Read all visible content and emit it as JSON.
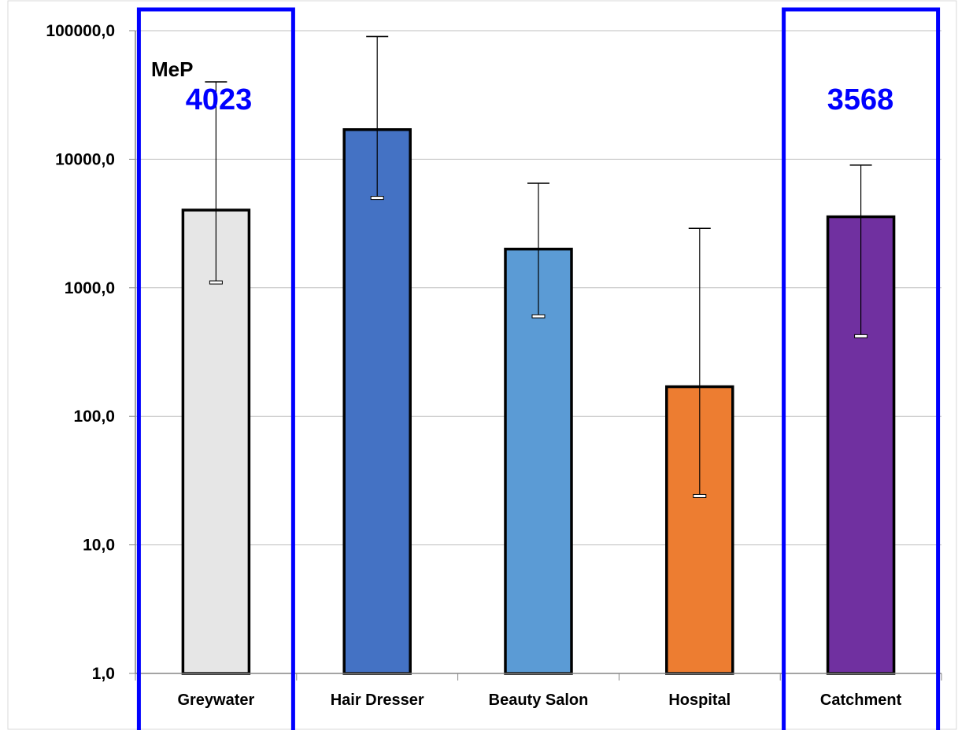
{
  "chart_data": {
    "type": "bar",
    "y_scale": "log",
    "ylim": [
      1,
      100000
    ],
    "unit_label": "MeP",
    "yticks": [
      "1,0",
      "10,0",
      "100,0",
      "1000,0",
      "10000,0",
      "100000,0"
    ],
    "ytick_values": [
      1,
      10,
      100,
      1000,
      10000,
      100000
    ],
    "categories": [
      "Greywater",
      "Hair Dresser",
      "Beauty Salon",
      "Hospital",
      "Catchment"
    ],
    "values": [
      4023,
      17000,
      2000,
      170,
      3568
    ],
    "error_low": [
      1100,
      5000,
      600,
      24,
      420
    ],
    "error_high": [
      40000,
      90000,
      6500,
      2900,
      9000
    ],
    "colors": [
      "#e6e6e6",
      "#4472c4",
      "#5b9bd5",
      "#ed7d31",
      "#7030a0"
    ],
    "grid": true,
    "highlighted": [
      {
        "category": "Greywater",
        "label": "4023"
      },
      {
        "category": "Catchment",
        "label": "3568"
      }
    ],
    "highlight_color": "#0000ff"
  }
}
